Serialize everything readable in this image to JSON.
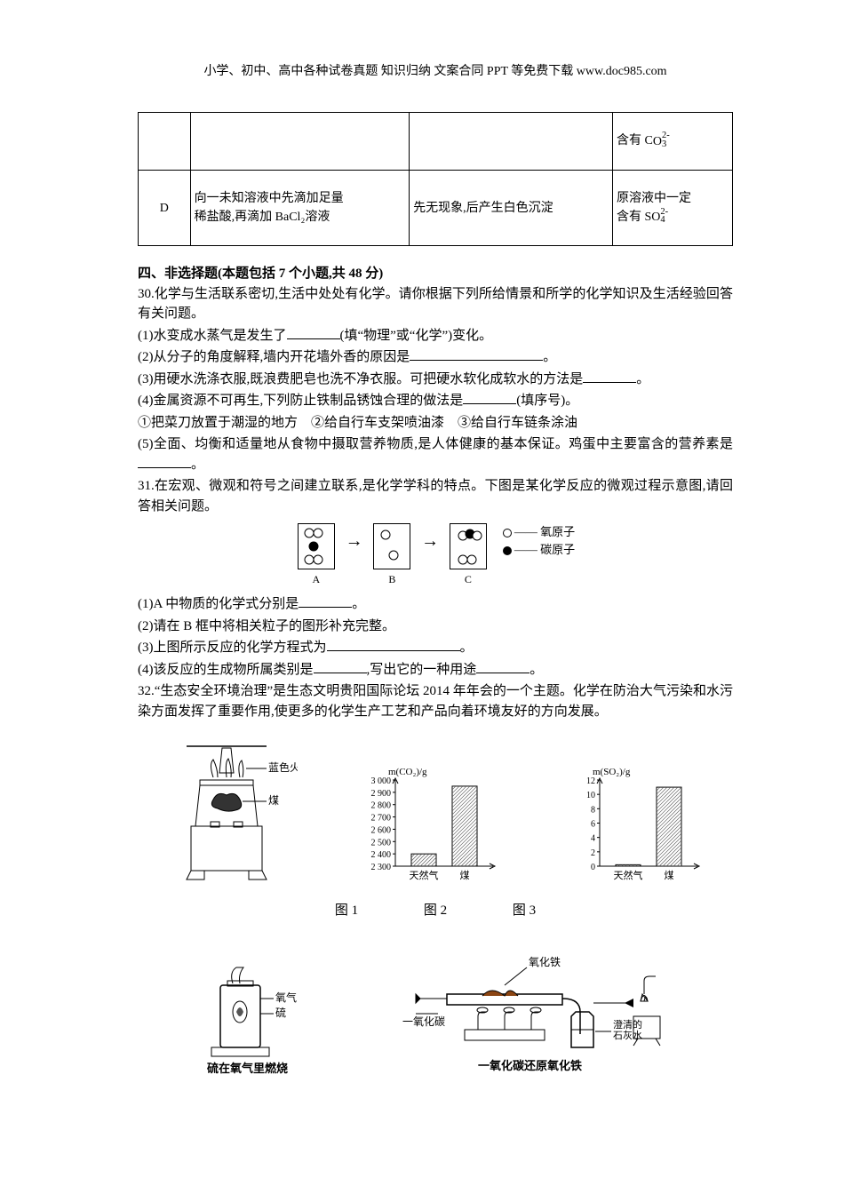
{
  "header": "小学、初中、高中各种试卷真题 知识归纳 文案合同 PPT 等免费下载  www.doc985.com",
  "table": {
    "row1_col4_prefix": "含有 C",
    "row2_col1": "D",
    "row2_col2_l1": "向一未知溶液中先滴加足量",
    "row2_col2_l2": "稀盐酸,再滴加 BaCl₂溶液",
    "row2_col3": "先无现象,后产生白色沉淀",
    "row2_col4_l1": "原溶液中一定",
    "row2_col4_l2_prefix": "含有 S",
    "ion_o": "O",
    "ion_3": "3",
    "ion_4": "4",
    "ion_charge": "2-"
  },
  "section4": "四、非选择题(本题包括 7 个小题,共 48 分)",
  "q30": {
    "stem": "30.化学与生活联系密切,生活中处处有化学。请你根据下列所给情景和所学的化学知识及生活经验回答有关问题。",
    "p1a": "(1)水变成水蒸气是发生了",
    "p1b": "(填“物理”或“化学”)变化。",
    "p2a": "(2)从分子的角度解释,墙内开花墙外香的原因是",
    "p2b": "。",
    "p3a": "(3)用硬水洗涤衣服,既浪费肥皂也洗不净衣服。可把硬水软化成软水的方法是",
    "p3b": "。",
    "p4a": "(4)金属资源不可再生,下列防止铁制品锈蚀合理的做法是",
    "p4b": "(填序号)。",
    "p4opts": "①把菜刀放置于潮湿的地方　②给自行车支架喷油漆　③给自行车链条涂油",
    "p5a": "(5)全面、均衡和适量地从食物中摄取营养物质,是人体健康的基本保证。鸡蛋中主要富含的营养素是",
    "p5b": "。"
  },
  "q31": {
    "stem": "31.在宏观、微观和符号之间建立联系,是化学学科的特点。下图是某化学反应的微观过程示意图,请回答相关问题。",
    "labelA": "A",
    "labelB": "B",
    "labelC": "C",
    "legendO": "氧原子",
    "legendC": "碳原子",
    "p1a": "(1)A 中物质的化学式分别是",
    "p1b": "。",
    "p2": "(2)请在 B 框中将相关粒子的图形补充完整。",
    "p3a": "(3)上图所示反应的化学方程式为",
    "p3b": "。",
    "p4a": "(4)该反应的生成物所属类别是",
    "p4m": ",写出它的一种用途",
    "p4b": "。"
  },
  "q32": {
    "stem": "32.“生态安全环境治理”是生态文明贵阳国际论坛 2014 年年会的一个主题。化学在防治大气污染和水污染方面发挥了重要作用,使更多的化学生产工艺和产品向着环境友好的方向发展。"
  },
  "figs": {
    "fig1_flame": "蓝色火焰",
    "fig1_coal": "煤",
    "fig2_ylabel": "m(CO₂)/g",
    "fig2_yticks": [
      "3 000",
      "2 900",
      "2 800",
      "2 700",
      "2 600",
      "2 500",
      "2 400",
      "2 300"
    ],
    "fig2_x1": "天然气",
    "fig2_x2": "煤",
    "fig2_values": [
      2400,
      2950
    ],
    "fig2_ylim": [
      2300,
      3000
    ],
    "fig3_ylabel": "m(SO₂)/g",
    "fig3_yticks": [
      "12",
      "10",
      "8",
      "6",
      "4",
      "2",
      "0"
    ],
    "fig3_x1": "天然气",
    "fig3_x2": "煤",
    "fig3_values": [
      0.2,
      11
    ],
    "fig3_ylim": [
      0,
      12
    ],
    "label1": "图 1",
    "label2": "图 2",
    "label3": "图 3",
    "bottom1_o2": "氧气",
    "bottom1_s": "硫",
    "bottom1_caption": "硫在氧气里燃烧",
    "bottom2_feo": "氧化铁",
    "bottom2_co": "一氧化碳",
    "bottom2_caption": "一氧化碳还原氧化铁",
    "bottom2_lime": "澄清的石灰水",
    "bar_color": "#666666",
    "hatch_color": "#555555"
  }
}
